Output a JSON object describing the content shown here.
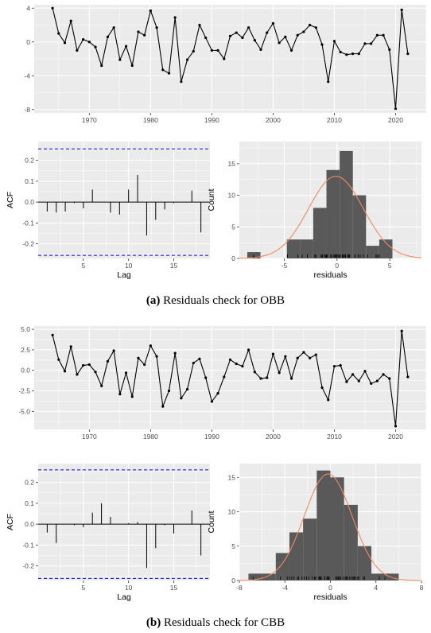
{
  "figure": {
    "caption_a_label": "(a)",
    "caption_a_text": "Residuals check for OBB",
    "caption_b_label": "(b)",
    "caption_b_text": "Residuals check for CBB"
  },
  "colors": {
    "panel_bg": "#ebebeb",
    "grid": "#ffffff",
    "line": "#000000",
    "ci_line": "#0000ff",
    "hist_bar": "#595959",
    "normal_curve": "#f08a62",
    "axis_text": "#4d4d4d"
  },
  "chart_data": [
    {
      "id": "a_timeseries",
      "type": "line",
      "title": "",
      "xlabel": "",
      "ylabel": "",
      "xlim": [
        1961,
        2025
      ],
      "ylim": [
        -8.4,
        4.4
      ],
      "xticks": [
        1970,
        1980,
        1990,
        2000,
        2010,
        2020
      ],
      "yticks": [
        4,
        0,
        -4,
        -8
      ],
      "x": [
        1964,
        1965,
        1966,
        1967,
        1968,
        1969,
        1970,
        1971,
        1972,
        1973,
        1974,
        1975,
        1976,
        1977,
        1978,
        1979,
        1980,
        1981,
        1982,
        1983,
        1984,
        1985,
        1986,
        1987,
        1988,
        1989,
        1990,
        1991,
        1992,
        1993,
        1994,
        1995,
        1996,
        1997,
        1998,
        1999,
        2000,
        2001,
        2002,
        2003,
        2004,
        2005,
        2006,
        2007,
        2008,
        2009,
        2010,
        2011,
        2012,
        2013,
        2014,
        2015,
        2016,
        2017,
        2018,
        2019,
        2020,
        2021,
        2022
      ],
      "y": [
        4.0,
        1.0,
        -0.1,
        2.5,
        -1.0,
        0.3,
        0.0,
        -0.6,
        -2.8,
        0.6,
        1.7,
        -2.1,
        -0.5,
        -2.8,
        1.2,
        0.8,
        3.7,
        1.7,
        -3.3,
        -3.7,
        2.9,
        -4.7,
        -2.1,
        -1.1,
        2.0,
        0.5,
        -1.0,
        -1.0,
        -2.0,
        0.7,
        1.1,
        0.5,
        1.7,
        0.2,
        -0.9,
        1.1,
        2.2,
        -0.1,
        0.6,
        -1.0,
        0.8,
        1.2,
        2.0,
        1.7,
        -0.3,
        -4.7,
        0.1,
        -1.2,
        -1.5,
        -1.4,
        -1.4,
        -0.2,
        -0.2,
        0.8,
        0.8,
        -0.9,
        -7.9,
        3.8,
        -1.4
      ]
    },
    {
      "id": "a_acf",
      "type": "bar",
      "title": "",
      "xlabel": "Lag",
      "ylabel": "ACF",
      "xlim": [
        0,
        19
      ],
      "ylim": [
        -0.27,
        0.29
      ],
      "xticks": [
        5,
        10,
        15
      ],
      "yticks": [
        0.2,
        0.1,
        0.0,
        -0.1,
        -0.2
      ],
      "ci": [
        0.255,
        -0.255
      ],
      "lags": [
        1,
        2,
        3,
        4,
        5,
        6,
        7,
        8,
        9,
        10,
        11,
        12,
        13,
        14,
        15,
        16,
        17,
        18
      ],
      "values": [
        -0.045,
        -0.05,
        -0.045,
        -0.005,
        -0.03,
        0.06,
        0.0,
        -0.05,
        -0.06,
        0.06,
        0.13,
        -0.16,
        -0.085,
        -0.035,
        -0.005,
        0.0,
        0.055,
        -0.145
      ]
    },
    {
      "id": "a_hist",
      "type": "bar",
      "title": "",
      "xlabel": "residuals",
      "ylabel": "Count",
      "xlim": [
        -9.25,
        8.0
      ],
      "ylim": [
        0,
        18.5
      ],
      "xticks": [
        -5,
        0,
        5
      ],
      "yticks": [
        0,
        5,
        10,
        15
      ],
      "bin_edges": [
        -8.5,
        -7.25,
        -6.0,
        -4.75,
        -3.5,
        -2.25,
        -1.0,
        0.25,
        1.5,
        2.75,
        4.0,
        5.25
      ],
      "counts": [
        1,
        0,
        0,
        3,
        3,
        8,
        14,
        17,
        10,
        2,
        3
      ],
      "normal_mean": -0.1,
      "normal_sd": 2.6,
      "normal_peak": 13.0,
      "rug": [
        -7.9,
        -4.7,
        -4.7,
        -3.7,
        -3.3,
        -2.8,
        -2.8,
        -2.1,
        -2.1,
        -2.0,
        -1.5,
        -1.4,
        -1.4,
        -1.4,
        -1.2,
        -1.1,
        -1.0,
        -1.0,
        -1.0,
        -1.0,
        -0.9,
        -0.9,
        -0.6,
        -0.5,
        -0.3,
        -0.2,
        -0.2,
        -0.1,
        -0.1,
        0.0,
        0.1,
        0.2,
        0.3,
        0.5,
        0.5,
        0.6,
        0.6,
        0.7,
        0.8,
        0.8,
        0.8,
        0.8,
        1.0,
        1.1,
        1.1,
        1.2,
        1.2,
        1.7,
        1.7,
        1.7,
        2.0,
        2.0,
        2.2,
        2.5,
        2.9,
        3.7,
        3.8,
        4.0
      ]
    },
    {
      "id": "b_timeseries",
      "type": "line",
      "title": "",
      "xlabel": "",
      "ylabel": "",
      "xlim": [
        1961,
        2025
      ],
      "ylim": [
        -7.2,
        5.4
      ],
      "xticks": [
        1970,
        1980,
        1990,
        2000,
        2010,
        2020
      ],
      "yticks": [
        5.0,
        2.5,
        0.0,
        -2.5,
        -5.0
      ],
      "x": [
        1964,
        1965,
        1966,
        1967,
        1968,
        1969,
        1970,
        1971,
        1972,
        1973,
        1974,
        1975,
        1976,
        1977,
        1978,
        1979,
        1980,
        1981,
        1982,
        1983,
        1984,
        1985,
        1986,
        1987,
        1988,
        1989,
        1990,
        1991,
        1992,
        1993,
        1994,
        1995,
        1996,
        1997,
        1998,
        1999,
        2000,
        2001,
        2002,
        2003,
        2004,
        2005,
        2006,
        2007,
        2008,
        2009,
        2010,
        2011,
        2012,
        2013,
        2014,
        2015,
        2016,
        2017,
        2018,
        2019,
        2020,
        2021,
        2022
      ],
      "y": [
        4.3,
        1.3,
        -0.1,
        2.9,
        -0.5,
        0.6,
        0.7,
        -0.2,
        -1.9,
        1.1,
        2.4,
        -2.9,
        -0.3,
        -3.2,
        1.5,
        0.7,
        3.0,
        1.7,
        -4.4,
        -2.5,
        2.1,
        -3.4,
        -2.3,
        0.9,
        1.4,
        -0.9,
        -3.8,
        -2.8,
        -0.8,
        1.3,
        0.8,
        0.5,
        2.5,
        -0.2,
        -1.0,
        -0.9,
        2.0,
        -0.3,
        1.7,
        -1.0,
        1.5,
        2.2,
        1.5,
        1.9,
        -2.1,
        -3.6,
        0.5,
        0.6,
        -1.4,
        -0.5,
        -1.3,
        -0.1,
        -1.6,
        -1.3,
        -0.5,
        -1.0,
        -6.8,
        4.8,
        -0.8
      ]
    },
    {
      "id": "b_acf",
      "type": "bar",
      "title": "",
      "xlabel": "Lag",
      "ylabel": "ACF",
      "xlim": [
        0,
        19
      ],
      "ylim": [
        -0.27,
        0.29
      ],
      "xticks": [
        5,
        10,
        15
      ],
      "yticks": [
        0.2,
        0.1,
        0.0,
        -0.1,
        -0.2
      ],
      "ci": [
        0.26,
        -0.26
      ],
      "lags": [
        1,
        2,
        3,
        4,
        5,
        6,
        7,
        8,
        9,
        10,
        11,
        12,
        13,
        14,
        15,
        16,
        17,
        18
      ],
      "values": [
        -0.04,
        -0.09,
        0.0,
        -0.005,
        -0.015,
        0.055,
        0.1,
        0.035,
        0.0,
        0.005,
        0.01,
        -0.21,
        -0.115,
        -0.005,
        -0.045,
        0.0,
        0.065,
        -0.15
      ]
    },
    {
      "id": "b_hist",
      "type": "bar",
      "title": "",
      "xlabel": "residuals",
      "ylabel": "Count",
      "xlim": [
        -8.0,
        8.0
      ],
      "ylim": [
        0,
        17.0
      ],
      "xticks": [
        -8,
        -4,
        0,
        4,
        8
      ],
      "yticks": [
        0,
        5,
        10,
        15
      ],
      "bin_edges": [
        -7.2,
        -6.0,
        -4.8,
        -3.6,
        -2.4,
        -1.2,
        0.0,
        1.2,
        2.4,
        3.6,
        4.8,
        6.0
      ],
      "counts": [
        1,
        1,
        4,
        7,
        9,
        16,
        15,
        11,
        5,
        1,
        1
      ],
      "normal_mean": -0.2,
      "normal_sd": 2.1,
      "normal_peak": 15.5,
      "rug": [
        -6.8,
        -4.4,
        -3.8,
        -3.6,
        -3.4,
        -3.2,
        -2.9,
        -2.8,
        -2.5,
        -2.3,
        -2.1,
        -1.9,
        -1.6,
        -1.4,
        -1.3,
        -1.3,
        -1.0,
        -1.0,
        -1.0,
        -0.9,
        -0.9,
        -0.8,
        -0.8,
        -0.5,
        -0.5,
        -0.5,
        -0.3,
        -0.3,
        -0.2,
        -0.2,
        -0.1,
        -0.1,
        0.5,
        0.5,
        0.6,
        0.7,
        0.7,
        0.8,
        0.9,
        1.1,
        1.3,
        1.3,
        1.4,
        1.5,
        1.5,
        1.5,
        1.7,
        1.7,
        1.9,
        2.0,
        2.1,
        2.2,
        2.4,
        2.5,
        2.9,
        3.0,
        4.3,
        4.8
      ]
    }
  ]
}
